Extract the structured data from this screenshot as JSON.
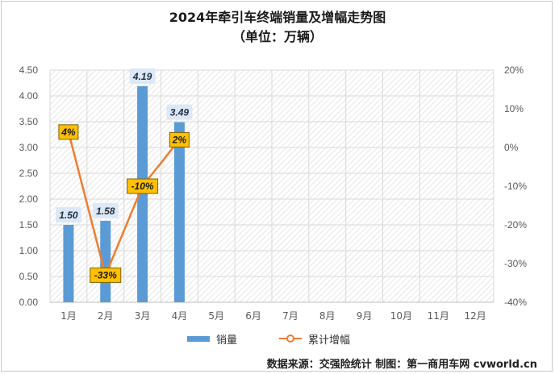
{
  "title": "2024年牵引车终端销量及增幅走势图",
  "subtitle": "（单位：万辆）",
  "source": "数据来源：交强险统计   制图：第一商用车网 cvworld.cn",
  "colors": {
    "bar": "#5b9bd5",
    "line": "#ed7d31",
    "label_box_fill": "#ffc000",
    "label_box_border": "#7f6000",
    "bar_label_bg": "#dde8f6",
    "axis_text": "#595959",
    "grid": "#d9d9d9"
  },
  "chart_data": {
    "type": "bar",
    "categories": [
      "1月",
      "2月",
      "3月",
      "4月",
      "5月",
      "6月",
      "7月",
      "8月",
      "9月",
      "10月",
      "11月",
      "12月"
    ],
    "series": [
      {
        "name": "销量",
        "type": "bar",
        "axis": "left",
        "values": [
          1.5,
          1.58,
          4.19,
          3.49,
          null,
          null,
          null,
          null,
          null,
          null,
          null,
          null
        ],
        "labels": [
          "1.50",
          "1.58",
          "4.19",
          "3.49"
        ]
      },
      {
        "name": "累计增幅",
        "type": "line",
        "axis": "right",
        "values": [
          4,
          -33,
          -10,
          2,
          null,
          null,
          null,
          null,
          null,
          null,
          null,
          null
        ],
        "labels": [
          "4%",
          "-33%",
          "-10%",
          "2%"
        ]
      }
    ],
    "y_left": {
      "ylim": [
        0,
        4.5
      ],
      "ticks": [
        "0.00",
        "0.50",
        "1.00",
        "1.50",
        "2.00",
        "2.50",
        "3.00",
        "3.50",
        "4.00",
        "4.50"
      ]
    },
    "y_right": {
      "ylim": [
        -40,
        20
      ],
      "ticks": [
        "-40%",
        "-30%",
        "-20%",
        "-10%",
        "0%",
        "10%",
        "20%"
      ]
    },
    "grid": true,
    "legend_position": "bottom"
  }
}
